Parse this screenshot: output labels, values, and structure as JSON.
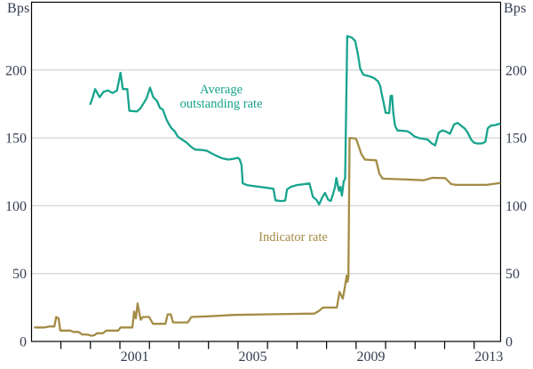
{
  "chart_data": {
    "type": "line",
    "title": "",
    "unit_left": "Bps",
    "unit_right": "Bps",
    "grid_on": true,
    "x_axis": {
      "min_year": 1998.0,
      "max_year": 2013.95,
      "tick_years": [
        1999,
        2000,
        2001,
        2002,
        2003,
        2004,
        2005,
        2006,
        2007,
        2008,
        2009,
        2010,
        2011,
        2012,
        2013
      ],
      "label_years": [
        2001,
        2005,
        2009,
        2013
      ]
    },
    "y_axis": {
      "min": 0,
      "max": 250,
      "tick_labels": [
        0,
        50,
        100,
        150,
        200
      ],
      "gridline_values": [
        50,
        100,
        150,
        200
      ]
    },
    "colors": {
      "average_outstanding": "#17a48d",
      "indicator": "#a38c44",
      "axis_text": "#343c50",
      "gridline": "#c9c9c9",
      "frame": "#000000"
    },
    "legend": {
      "average_line1": "Average",
      "average_line2": "outstanding rate",
      "indicator": "Indicator rate"
    },
    "series": [
      {
        "name": "Average outstanding rate",
        "color": "#17a48d",
        "points": [
          [
            2000.0,
            175
          ],
          [
            2000.08,
            180
          ],
          [
            2000.16,
            186
          ],
          [
            2000.31,
            180
          ],
          [
            2000.45,
            184
          ],
          [
            2000.6,
            185
          ],
          [
            2000.75,
            183
          ],
          [
            2000.9,
            185
          ],
          [
            2001.02,
            198
          ],
          [
            2001.1,
            186
          ],
          [
            2001.25,
            186
          ],
          [
            2001.32,
            170
          ],
          [
            2001.58,
            169.5
          ],
          [
            2001.7,
            172
          ],
          [
            2001.8,
            175.5
          ],
          [
            2001.9,
            179
          ],
          [
            2002.02,
            187
          ],
          [
            2002.13,
            180
          ],
          [
            2002.25,
            177.5
          ],
          [
            2002.36,
            172
          ],
          [
            2002.45,
            171
          ],
          [
            2002.58,
            163.5
          ],
          [
            2002.66,
            160
          ],
          [
            2002.75,
            157
          ],
          [
            2002.85,
            155
          ],
          [
            2002.96,
            151
          ],
          [
            2003.1,
            148.8
          ],
          [
            2003.26,
            146.6
          ],
          [
            2003.41,
            143.4
          ],
          [
            2003.55,
            141.4
          ],
          [
            2003.8,
            141
          ],
          [
            2003.95,
            140.5
          ],
          [
            2004.07,
            139
          ],
          [
            2004.25,
            137
          ],
          [
            2004.46,
            135
          ],
          [
            2004.67,
            134
          ],
          [
            2004.85,
            134.6
          ],
          [
            2005.0,
            135.3
          ],
          [
            2005.06,
            134
          ],
          [
            2005.12,
            130
          ],
          [
            2005.16,
            116.5
          ],
          [
            2005.3,
            115.3
          ],
          [
            2005.5,
            114.6
          ],
          [
            2005.7,
            114
          ],
          [
            2006.0,
            113.2
          ],
          [
            2006.2,
            112.5
          ],
          [
            2006.27,
            104
          ],
          [
            2006.45,
            103.5
          ],
          [
            2006.6,
            103.8
          ],
          [
            2006.66,
            112
          ],
          [
            2006.8,
            114
          ],
          [
            2007.0,
            115.3
          ],
          [
            2007.2,
            115.8
          ],
          [
            2007.42,
            116.5
          ],
          [
            2007.54,
            106.5
          ],
          [
            2007.65,
            104.5
          ],
          [
            2007.75,
            101
          ],
          [
            2007.85,
            106
          ],
          [
            2007.95,
            109.5
          ],
          [
            2008.05,
            104.5
          ],
          [
            2008.14,
            103.5
          ],
          [
            2008.22,
            108.5
          ],
          [
            2008.29,
            114
          ],
          [
            2008.33,
            120.5
          ],
          [
            2008.42,
            111
          ],
          [
            2008.47,
            114
          ],
          [
            2008.52,
            107.5
          ],
          [
            2008.58,
            118
          ],
          [
            2008.63,
            120
          ],
          [
            2008.7,
            225
          ],
          [
            2008.85,
            224
          ],
          [
            2008.97,
            221.5
          ],
          [
            2009.06,
            212
          ],
          [
            2009.14,
            201
          ],
          [
            2009.25,
            196.5
          ],
          [
            2009.45,
            195.5
          ],
          [
            2009.62,
            194
          ],
          [
            2009.75,
            191.5
          ],
          [
            2009.82,
            188
          ],
          [
            2009.87,
            182
          ],
          [
            2009.93,
            176.5
          ],
          [
            2010.0,
            168.5
          ],
          [
            2010.12,
            168.3
          ],
          [
            2010.17,
            181
          ],
          [
            2010.22,
            181
          ],
          [
            2010.26,
            168.5
          ],
          [
            2010.32,
            159
          ],
          [
            2010.4,
            155.5
          ],
          [
            2010.72,
            155
          ],
          [
            2010.82,
            154
          ],
          [
            2010.97,
            151.2
          ],
          [
            2011.15,
            149.8
          ],
          [
            2011.42,
            148.8
          ],
          [
            2011.56,
            146
          ],
          [
            2011.68,
            144.5
          ],
          [
            2011.8,
            154
          ],
          [
            2011.93,
            155.5
          ],
          [
            2012.08,
            154.3
          ],
          [
            2012.18,
            153
          ],
          [
            2012.32,
            160
          ],
          [
            2012.44,
            161
          ],
          [
            2012.56,
            159
          ],
          [
            2012.68,
            157
          ],
          [
            2012.78,
            154
          ],
          [
            2012.89,
            149
          ],
          [
            2012.99,
            146.5
          ],
          [
            2013.12,
            145.8
          ],
          [
            2013.28,
            146
          ],
          [
            2013.38,
            147.2
          ],
          [
            2013.46,
            157
          ],
          [
            2013.56,
            159
          ],
          [
            2013.72,
            159.5
          ],
          [
            2013.86,
            160.5
          ]
        ]
      },
      {
        "name": "Indicator rate",
        "color": "#a38c44",
        "points": [
          [
            1998.12,
            10.3
          ],
          [
            1998.45,
            10.3
          ],
          [
            1998.6,
            11
          ],
          [
            1998.78,
            11
          ],
          [
            1998.84,
            18
          ],
          [
            1998.92,
            17
          ],
          [
            1998.98,
            8
          ],
          [
            1999.32,
            8
          ],
          [
            1999.42,
            7
          ],
          [
            1999.6,
            7
          ],
          [
            1999.72,
            5.2
          ],
          [
            1999.92,
            5
          ],
          [
            2000.02,
            4.2
          ],
          [
            2000.14,
            4.6
          ],
          [
            2000.22,
            6
          ],
          [
            2000.42,
            6
          ],
          [
            2000.54,
            8
          ],
          [
            2000.94,
            8
          ],
          [
            2001.02,
            10.3
          ],
          [
            2001.42,
            10.3
          ],
          [
            2001.48,
            22
          ],
          [
            2001.54,
            17
          ],
          [
            2001.6,
            28
          ],
          [
            2001.7,
            16
          ],
          [
            2001.78,
            18
          ],
          [
            2001.99,
            18
          ],
          [
            2002.12,
            13
          ],
          [
            2002.54,
            13
          ],
          [
            2002.62,
            20
          ],
          [
            2002.72,
            20
          ],
          [
            2002.8,
            14
          ],
          [
            2003.3,
            14
          ],
          [
            2003.42,
            18
          ],
          [
            2003.95,
            18.5
          ],
          [
            2004.85,
            19.5
          ],
          [
            2006.0,
            20
          ],
          [
            2007.58,
            20.5
          ],
          [
            2007.74,
            22.5
          ],
          [
            2007.88,
            25
          ],
          [
            2008.35,
            25
          ],
          [
            2008.44,
            36.5
          ],
          [
            2008.55,
            31.5
          ],
          [
            2008.62,
            40
          ],
          [
            2008.68,
            48.5
          ],
          [
            2008.71,
            44
          ],
          [
            2008.74,
            47
          ],
          [
            2008.78,
            150
          ],
          [
            2009.0,
            149.5
          ],
          [
            2009.07,
            145
          ],
          [
            2009.18,
            138
          ],
          [
            2009.3,
            134
          ],
          [
            2009.68,
            133.5
          ],
          [
            2009.79,
            123.5
          ],
          [
            2009.9,
            120
          ],
          [
            2010.5,
            119.5
          ],
          [
            2011.3,
            118.8
          ],
          [
            2011.58,
            120.6
          ],
          [
            2012.02,
            120.4
          ],
          [
            2012.22,
            116
          ],
          [
            2012.38,
            115.4
          ],
          [
            2013.42,
            115.4
          ],
          [
            2013.86,
            116.7
          ]
        ]
      }
    ]
  }
}
